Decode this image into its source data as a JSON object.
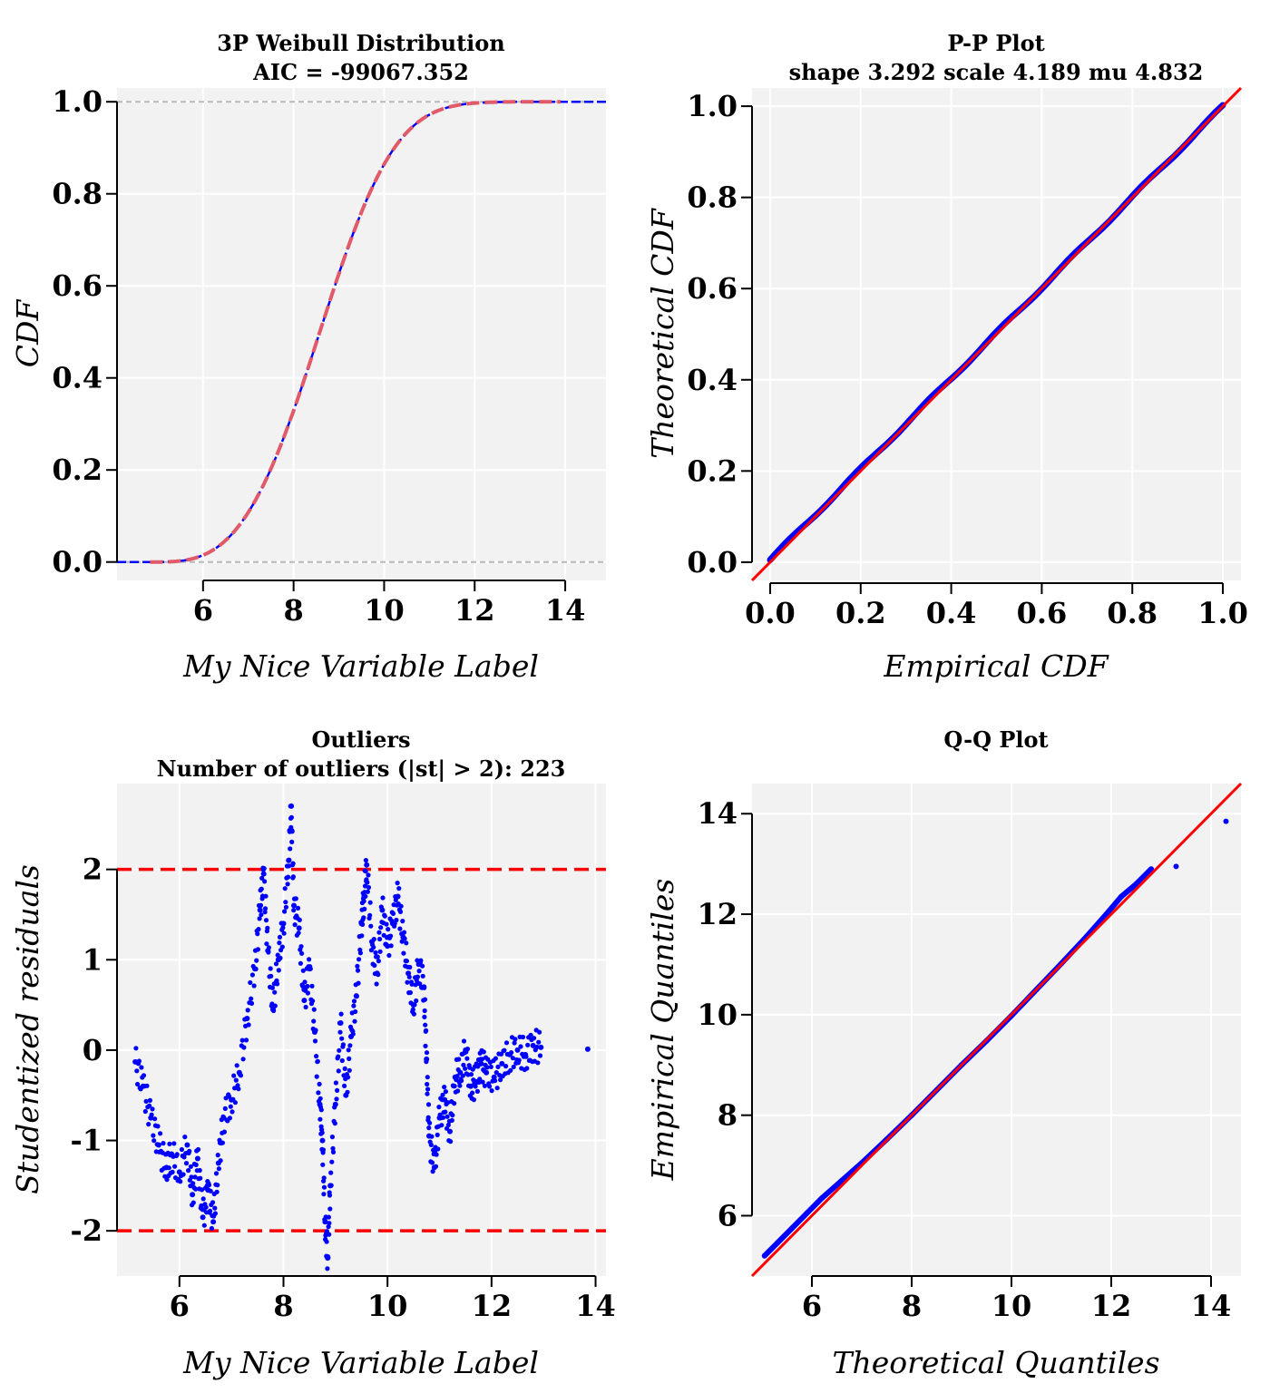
{
  "chart_data": [
    {
      "type": "line",
      "title": "3P Weibull Distribution",
      "subtitle": "AIC = -99067.352",
      "xlabel": "My Nice Variable Label",
      "ylabel": "CDF",
      "xlim": [
        4.1,
        14.9
      ],
      "ylim": [
        -0.04,
        1.03
      ],
      "xticks": [
        "6",
        "8",
        "10",
        "12",
        "14"
      ],
      "xtick_values": [
        6,
        8,
        10,
        12,
        14
      ],
      "yticks": [
        "0.0",
        "0.2",
        "0.4",
        "0.6",
        "0.8",
        "1.0"
      ],
      "ytick_values": [
        0,
        0.2,
        0.4,
        0.6,
        0.8,
        1.0
      ],
      "grid": true,
      "weibull": {
        "shape": 3.292,
        "scale": 4.189,
        "mu": 4.832
      },
      "series": [
        {
          "role": "empirical CDF",
          "color": "#0000ff",
          "style": "dashed",
          "x_range": [
            4.1,
            14.9
          ]
        },
        {
          "role": "fitted CDF",
          "color": "#e05a6a",
          "style": "dashed",
          "x_range": [
            4.83,
            13.9
          ]
        }
      ],
      "reference_lines": [
        0,
        1
      ]
    },
    {
      "type": "scatter",
      "title": "P-P Plot",
      "subtitle": "shape 3.292 scale 4.189 mu 4.832",
      "xlabel": "Empirical CDF",
      "ylabel": "Theoretical CDF",
      "xlim": [
        -0.04,
        1.04
      ],
      "ylim": [
        -0.04,
        1.04
      ],
      "xticks": [
        "0.0",
        "0.2",
        "0.4",
        "0.6",
        "0.8",
        "1.0"
      ],
      "xtick_values": [
        0,
        0.2,
        0.4,
        0.6,
        0.8,
        1.0
      ],
      "yticks": [
        "0.0",
        "0.2",
        "0.4",
        "0.6",
        "0.8",
        "1.0"
      ],
      "ytick_values": [
        0,
        0.2,
        0.4,
        0.6,
        0.8,
        1.0
      ],
      "grid": true,
      "points": {
        "color": "#0000ff",
        "from": [
          0,
          0.005
        ],
        "to": [
          1,
          1
        ]
      },
      "reference_line": {
        "color": "#ff0000",
        "slope": 1,
        "intercept": 0
      }
    },
    {
      "type": "scatter",
      "title": "Outliers",
      "subtitle": "Number of outliers (|st| > 2):  223",
      "xlabel": "My Nice Variable Label",
      "ylabel": "Studentized residuals",
      "xlim": [
        4.8,
        14.2
      ],
      "ylim": [
        -2.5,
        2.95
      ],
      "xticks": [
        "6",
        "8",
        "10",
        "12",
        "14"
      ],
      "xtick_values": [
        6,
        8,
        10,
        12,
        14
      ],
      "yticks": [
        "-2",
        "-1",
        "0",
        "1",
        "2"
      ],
      "ytick_values": [
        -2,
        -1,
        0,
        1,
        2
      ],
      "grid": true,
      "threshold_lines": {
        "values": [
          2,
          -2
        ],
        "color": "#ff0000",
        "style": "dashed"
      },
      "points": {
        "color": "#0000ff",
        "x": [
          5.15,
          5.3,
          5.45,
          5.6,
          5.75,
          5.85,
          6.0,
          6.15,
          6.25,
          6.35,
          6.45,
          6.55,
          6.65,
          6.75,
          6.85,
          7.0,
          7.15,
          7.3,
          7.45,
          7.55,
          7.62,
          7.7,
          7.8,
          7.9,
          8.0,
          8.1,
          8.15,
          8.2,
          8.3,
          8.4,
          8.5,
          8.6,
          8.7,
          8.75,
          8.8,
          8.85,
          8.9,
          9.0,
          9.1,
          9.2,
          9.3,
          9.4,
          9.5,
          9.55,
          9.6,
          9.7,
          9.8,
          9.9,
          10.0,
          10.1,
          10.2,
          10.3,
          10.4,
          10.5,
          10.6,
          10.7,
          10.75,
          10.8,
          10.9,
          11.0,
          11.1,
          11.2,
          11.3,
          11.4,
          11.5,
          11.6,
          11.7,
          11.8,
          11.9,
          12.05,
          12.2,
          12.35,
          12.5,
          12.65,
          12.8,
          12.95,
          13.85
        ],
        "y": [
          -0.13,
          -0.4,
          -0.75,
          -1.05,
          -1.3,
          -1.15,
          -1.35,
          -1.05,
          -1.6,
          -1.2,
          -1.85,
          -1.55,
          -1.9,
          -1.25,
          -0.75,
          -0.55,
          -0.25,
          0.35,
          0.9,
          1.55,
          1.95,
          1.1,
          0.45,
          1.0,
          1.4,
          2.1,
          2.7,
          1.6,
          1.35,
          0.55,
          0.9,
          0.2,
          -0.6,
          -1.0,
          -1.9,
          -2.3,
          -1.5,
          -0.6,
          0.3,
          -0.5,
          0.15,
          0.6,
          1.4,
          1.7,
          2.05,
          1.2,
          0.85,
          1.55,
          1.15,
          1.4,
          1.7,
          1.25,
          0.85,
          0.5,
          0.95,
          0.7,
          -0.1,
          -0.95,
          -1.3,
          -0.75,
          -0.55,
          -0.9,
          -0.3,
          -0.25,
          0.0,
          -0.4,
          -0.35,
          -0.15,
          -0.25,
          -0.3,
          -0.15,
          -0.05,
          0.0,
          -0.05,
          0.05,
          0.03,
          0.01
        ]
      }
    },
    {
      "type": "scatter",
      "title": "Q-Q Plot",
      "subtitle": "",
      "xlabel": "Theoretical Quantiles",
      "ylabel": "Empirical Quantiles",
      "xlim": [
        4.8,
        14.6
      ],
      "ylim": [
        4.8,
        14.6
      ],
      "xticks": [
        "6",
        "8",
        "10",
        "12",
        "14"
      ],
      "xtick_values": [
        6,
        8,
        10,
        12,
        14
      ],
      "yticks": [
        "6",
        "8",
        "10",
        "12",
        "14"
      ],
      "ytick_values": [
        6,
        8,
        10,
        12,
        14
      ],
      "grid": true,
      "reference_line": {
        "color": "#ff0000",
        "slope": 1,
        "intercept": 0
      },
      "points": {
        "color": "#0000ff",
        "x": [
          5.05,
          5.3,
          5.6,
          5.9,
          6.2,
          6.6,
          7.0,
          7.5,
          8.0,
          8.5,
          9.0,
          9.5,
          10.0,
          10.5,
          11.0,
          11.5,
          11.9,
          12.2,
          12.5,
          12.8,
          13.3,
          14.3
        ],
        "y": [
          5.2,
          5.45,
          5.75,
          6.05,
          6.35,
          6.7,
          7.05,
          7.52,
          8.0,
          8.5,
          9.0,
          9.48,
          9.98,
          10.5,
          11.02,
          11.55,
          12.0,
          12.35,
          12.6,
          12.9,
          12.95,
          13.85
        ]
      }
    }
  ]
}
